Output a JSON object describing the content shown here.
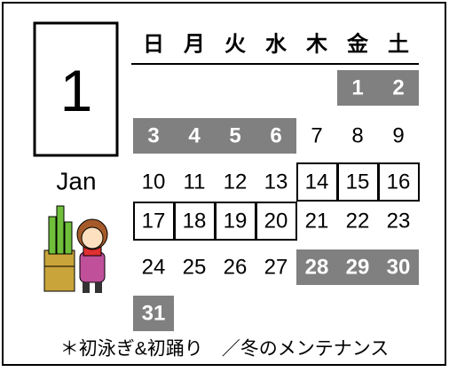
{
  "header": {
    "month_number": "1",
    "month_name": "Jan"
  },
  "calendar": {
    "weekdays": [
      "日",
      "月",
      "火",
      "水",
      "木",
      "金",
      "土"
    ],
    "weeks": [
      [
        null,
        null,
        null,
        null,
        null,
        1,
        2
      ],
      [
        3,
        4,
        5,
        6,
        7,
        8,
        9
      ],
      [
        10,
        11,
        12,
        13,
        14,
        15,
        16
      ],
      [
        17,
        18,
        19,
        20,
        21,
        22,
        23
      ],
      [
        24,
        25,
        26,
        27,
        28,
        29,
        30
      ],
      [
        31,
        null,
        null,
        null,
        null,
        null,
        null
      ]
    ],
    "shaded_days": [
      1,
      2,
      3,
      4,
      5,
      6,
      28,
      29,
      30,
      31
    ],
    "boxed_days": [
      14,
      15,
      16,
      17,
      18,
      19,
      20
    ]
  },
  "footer": {
    "note": "＊初泳ぎ&初踊り　／冬のメンテナンス"
  }
}
